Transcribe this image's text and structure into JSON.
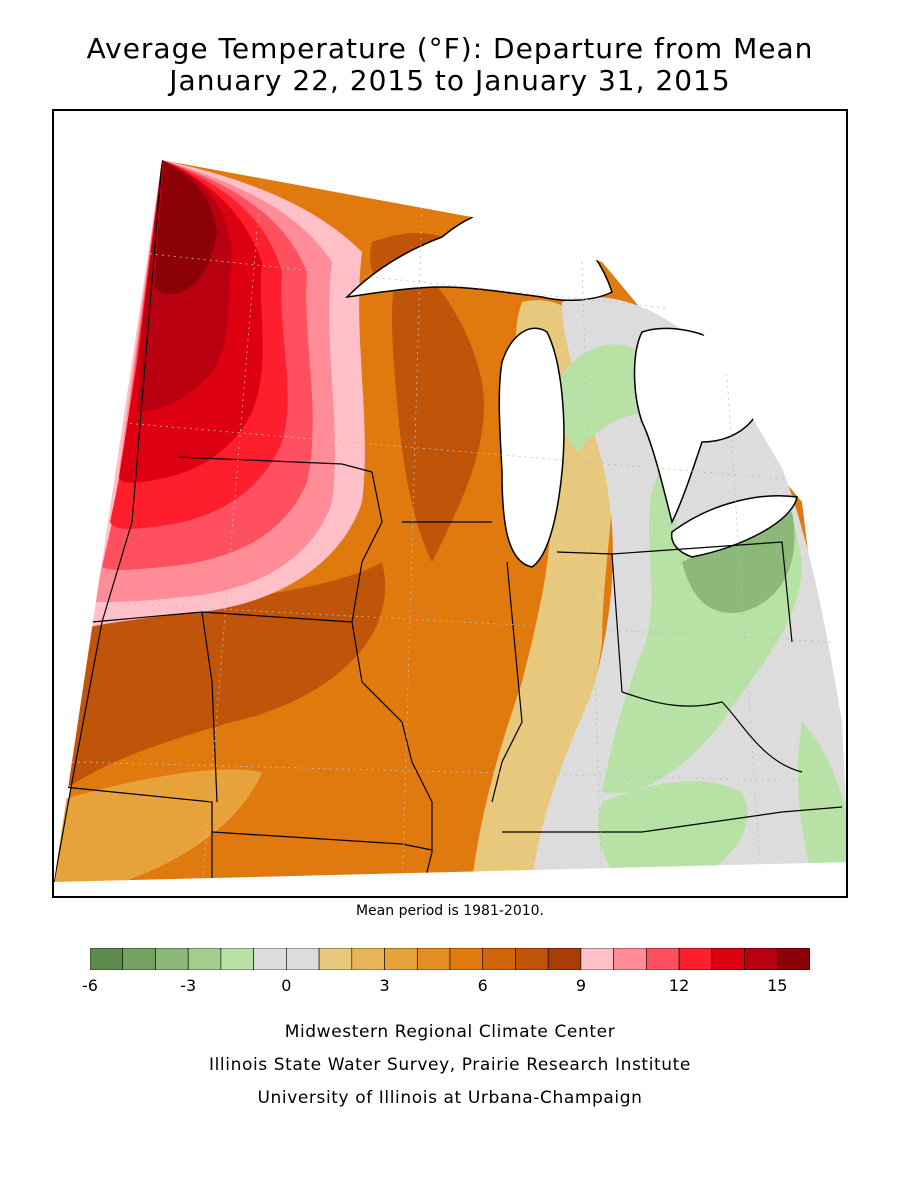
{
  "title_line1": "Average Temperature (°F): Departure from Mean",
  "title_line2": "January 22, 2015 to January 31, 2015",
  "mean_note": "Mean period is 1981-2010.",
  "legend": {
    "colors": [
      "#5e8c4f",
      "#75a263",
      "#8cb879",
      "#a3cc8d",
      "#b8e2a5",
      "#dcdcdc",
      "#dcdcdc",
      "#e8c87c",
      "#e8b45a",
      "#e8a23c",
      "#e58e24",
      "#e07a0e",
      "#d06408",
      "#c05408",
      "#a83e06",
      "#ffc0c8",
      "#ff8c96",
      "#ff5060",
      "#ff1e2c",
      "#dc0010",
      "#b80010",
      "#8c0008"
    ],
    "ticks": [
      "-6",
      "-3",
      "0",
      "3",
      "6",
      "9",
      "12",
      "15"
    ]
  },
  "credits": [
    "Midwestern Regional Climate Center",
    "Illinois State Water Survey, Prairie Research Institute",
    "University of Illinois at Urbana-Champaign"
  ]
}
